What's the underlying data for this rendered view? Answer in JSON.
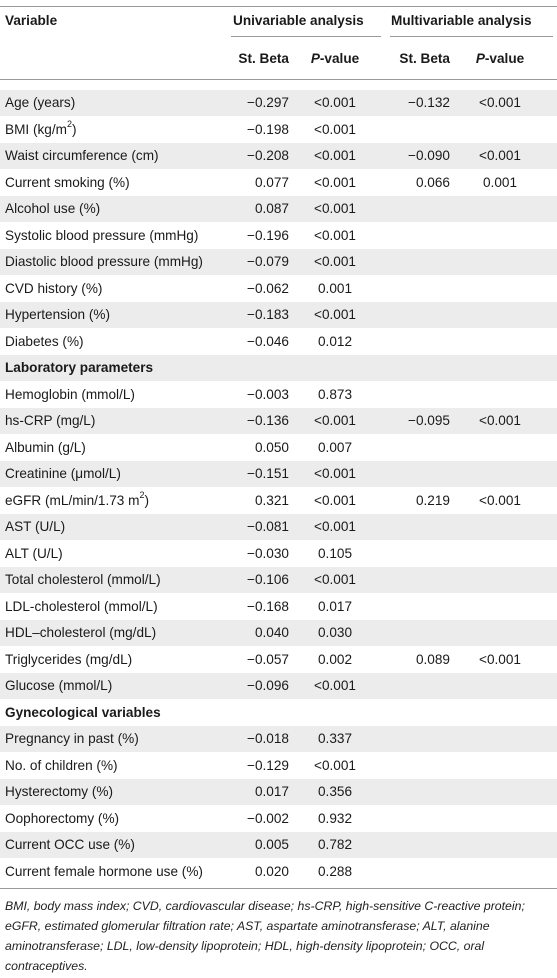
{
  "header": {
    "variable": "Variable",
    "univariable": "Univariable analysis",
    "multivariable": "Multivariable analysis",
    "st_beta": "St. Beta",
    "p_prefix": "P",
    "p_suffix": "-value"
  },
  "rows": [
    {
      "label": "Age (years)",
      "u_beta": "−0.297",
      "u_p": "<0.001",
      "m_beta": "−0.132",
      "m_p": "<0.001"
    },
    {
      "label_pre": "BMI (kg/m",
      "label_sup": "2",
      "label_post": ")",
      "u_beta": "−0.198",
      "u_p": "<0.001",
      "m_beta": "",
      "m_p": ""
    },
    {
      "label": "Waist circumference (cm)",
      "u_beta": "−0.208",
      "u_p": "<0.001",
      "m_beta": "−0.090",
      "m_p": "<0.001"
    },
    {
      "label": "Current smoking (%)",
      "u_beta": "0.077",
      "u_p": "<0.001",
      "m_beta": "0.066",
      "m_p": "0.001"
    },
    {
      "label": "Alcohol use (%)",
      "u_beta": "0.087",
      "u_p": "<0.001",
      "m_beta": "",
      "m_p": ""
    },
    {
      "label": "Systolic blood pressure (mmHg)",
      "u_beta": "−0.196",
      "u_p": "<0.001",
      "m_beta": "",
      "m_p": ""
    },
    {
      "label": "Diastolic blood pressure (mmHg)",
      "u_beta": "−0.079",
      "u_p": "<0.001",
      "m_beta": "",
      "m_p": ""
    },
    {
      "label": "CVD history (%)",
      "u_beta": "−0.062",
      "u_p": "0.001",
      "m_beta": "",
      "m_p": ""
    },
    {
      "label": "Hypertension (%)",
      "u_beta": "−0.183",
      "u_p": "<0.001",
      "m_beta": "",
      "m_p": ""
    },
    {
      "label": "Diabetes (%)",
      "u_beta": "−0.046",
      "u_p": "0.012",
      "m_beta": "",
      "m_p": ""
    },
    {
      "section": "Laboratory parameters"
    },
    {
      "label": "Hemoglobin (mmol/L)",
      "u_beta": "−0.003",
      "u_p": "0.873",
      "m_beta": "",
      "m_p": ""
    },
    {
      "label": "hs-CRP (mg/L)",
      "u_beta": "−0.136",
      "u_p": "<0.001",
      "m_beta": "−0.095",
      "m_p": "<0.001"
    },
    {
      "label": "Albumin (g/L)",
      "u_beta": "0.050",
      "u_p": "0.007",
      "m_beta": "",
      "m_p": ""
    },
    {
      "label": "Creatinine (μmol/L)",
      "u_beta": "−0.151",
      "u_p": "<0.001",
      "m_beta": "",
      "m_p": ""
    },
    {
      "label_pre": "eGFR (mL/min/1.73 m",
      "label_sup": "2",
      "label_post": ")",
      "u_beta": "0.321",
      "u_p": "<0.001",
      "m_beta": "0.219",
      "m_p": "<0.001"
    },
    {
      "label": "AST (U/L)",
      "u_beta": "−0.081",
      "u_p": "<0.001",
      "m_beta": "",
      "m_p": ""
    },
    {
      "label": "ALT (U/L)",
      "u_beta": "−0.030",
      "u_p": "0.105",
      "m_beta": "",
      "m_p": ""
    },
    {
      "label": "Total cholesterol (mmol/L)",
      "u_beta": "−0.106",
      "u_p": "<0.001",
      "m_beta": "",
      "m_p": ""
    },
    {
      "label": "LDL-cholesterol (mmol/L)",
      "u_beta": "−0.168",
      "u_p": "0.017",
      "m_beta": "",
      "m_p": ""
    },
    {
      "label": "HDL–cholesterol (mg/dL)",
      "u_beta": "0.040",
      "u_p": "0.030",
      "m_beta": "",
      "m_p": ""
    },
    {
      "label": "Triglycerides (mg/dL)",
      "u_beta": "−0.057",
      "u_p": "0.002",
      "m_beta": "0.089",
      "m_p": "<0.001"
    },
    {
      "label": "Glucose (mmol/L)",
      "u_beta": "−0.096",
      "u_p": "<0.001",
      "m_beta": "",
      "m_p": ""
    },
    {
      "section": "Gynecological variables"
    },
    {
      "label": "Pregnancy in past (%)",
      "u_beta": "−0.018",
      "u_p": "0.337",
      "m_beta": "",
      "m_p": ""
    },
    {
      "label": "No. of children (%)",
      "u_beta": "−0.129",
      "u_p": "<0.001",
      "m_beta": "",
      "m_p": ""
    },
    {
      "label": "Hysterectomy (%)",
      "u_beta": "0.017",
      "u_p": "0.356",
      "m_beta": "",
      "m_p": ""
    },
    {
      "label": "Oophorectomy (%)",
      "u_beta": "−0.002",
      "u_p": "0.932",
      "m_beta": "",
      "m_p": ""
    },
    {
      "label": "Current OCC use (%)",
      "u_beta": "0.005",
      "u_p": "0.782",
      "m_beta": "",
      "m_p": ""
    },
    {
      "label": "Current female hormone use (%)",
      "u_beta": "0.020",
      "u_p": "0.288",
      "m_beta": "",
      "m_p": ""
    }
  ],
  "footnote": "BMI, body mass index; CVD, cardiovascular disease; hs-CRP, high-sensitive C-reactive protein; eGFR, estimated glomerular filtration rate; AST, aspartate aminotransferase; ALT, alanine aminotransferase; LDL, low-density lipoprotein; HDL, high-density lipoprotein; OCC, oral contraceptives.",
  "colors": {
    "shade": "#ececec",
    "rule": "#9a9a9a",
    "text": "#1a1a1a"
  }
}
